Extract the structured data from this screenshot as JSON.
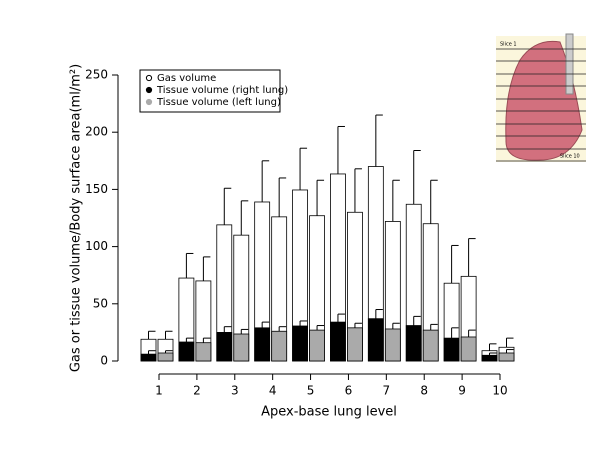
{
  "chart_data": {
    "type": "bar",
    "y_label": "Gas or tissue volume/Body surface area(ml/m²)",
    "x_label": "Apex-base lung level",
    "categories": [
      "1",
      "2",
      "3",
      "4",
      "5",
      "6",
      "7",
      "8",
      "9",
      "10"
    ],
    "ylim": [
      0,
      250
    ],
    "yticks": [
      0,
      50,
      100,
      150,
      200,
      250
    ],
    "series": [
      {
        "name": "Gas volume",
        "color": "#ffffff",
        "values": [
          19,
          72.5,
          119,
          139,
          149.5,
          163.5,
          170,
          137,
          68,
          9
        ],
        "errors": [
          7,
          21.5,
          32,
          36,
          36.5,
          41.5,
          45,
          47,
          33,
          6
        ]
      },
      {
        "color": "#ffffff",
        "values": [
          19,
          70,
          110,
          126,
          127,
          130,
          122,
          120,
          74,
          12
        ],
        "errors": [
          7,
          21,
          30,
          34,
          31,
          38,
          36,
          38,
          33,
          8
        ]
      },
      {
        "name": "Tissue volume (right lung)",
        "color": "#000000",
        "values": [
          6,
          16.6,
          25,
          29,
          30.6,
          34,
          37,
          31,
          20,
          5
        ],
        "errors": [
          3,
          3.4,
          5,
          5,
          4.4,
          7,
          8,
          8,
          9,
          2
        ]
      },
      {
        "name": "Tissue volume (left lung)",
        "color": "#aaaaaa",
        "values": [
          7,
          16,
          23.6,
          26,
          27,
          29,
          28,
          27,
          21,
          7
        ],
        "errors": [
          2,
          4,
          4,
          4,
          4,
          4,
          5,
          5,
          6,
          3
        ]
      }
    ]
  },
  "inset": {
    "labels": [
      "Slice 1",
      "Slice 10"
    ]
  }
}
